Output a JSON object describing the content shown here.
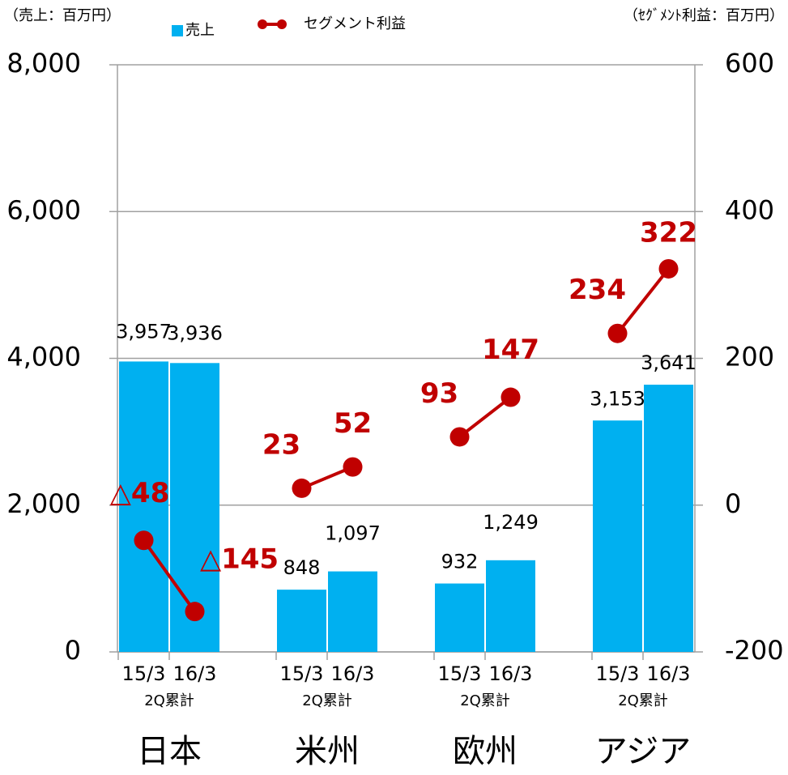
{
  "chart_data": {
    "type": "bar_line",
    "y_label": "（売上：百万円）",
    "y2_label": "（ｾｸﾞﾒﾝﾄ利益：百万円）",
    "categories": [
      "15/3",
      "16/3",
      "15/3",
      "16/3",
      "15/3",
      "16/3",
      "15/3",
      "16/3"
    ],
    "sub_labels": [
      "2Q累計",
      "2Q累計",
      "2Q累計",
      "2Q累計"
    ],
    "group_labels": [
      "日本",
      "米州",
      "欧州",
      "アジア"
    ],
    "series": [
      {
        "name": "売上",
        "type": "bar",
        "color": "#00b0f0",
        "values": [
          3957,
          3936,
          848,
          1097,
          932,
          1249,
          3153,
          3641
        ],
        "value_labels": [
          "3,957",
          "3,936",
          "848",
          "1,097",
          "932",
          "1,249",
          "3,153",
          "3,641"
        ]
      },
      {
        "name": "セグメント利益",
        "type": "line",
        "axis": "y2",
        "color": "#c00000",
        "values": [
          -48,
          -145,
          23,
          52,
          93,
          147,
          234,
          322
        ],
        "value_labels": [
          "△48",
          "△145",
          "23",
          "52",
          "93",
          "147",
          "234",
          "322"
        ]
      }
    ],
    "ylim": [
      0,
      8000
    ],
    "yticks": [
      0,
      {
        "value": 2000,
        "label": "2,000"
      },
      {
        "value": 4000,
        "label": "4,000"
      },
      {
        "value": 6000,
        "label": "6,000"
      },
      {
        "value": 8000,
        "label": "8,000"
      }
    ],
    "y2lim": [
      -200,
      600
    ],
    "y2ticks": [
      -200,
      0,
      200,
      400,
      600
    ],
    "grid": true
  }
}
